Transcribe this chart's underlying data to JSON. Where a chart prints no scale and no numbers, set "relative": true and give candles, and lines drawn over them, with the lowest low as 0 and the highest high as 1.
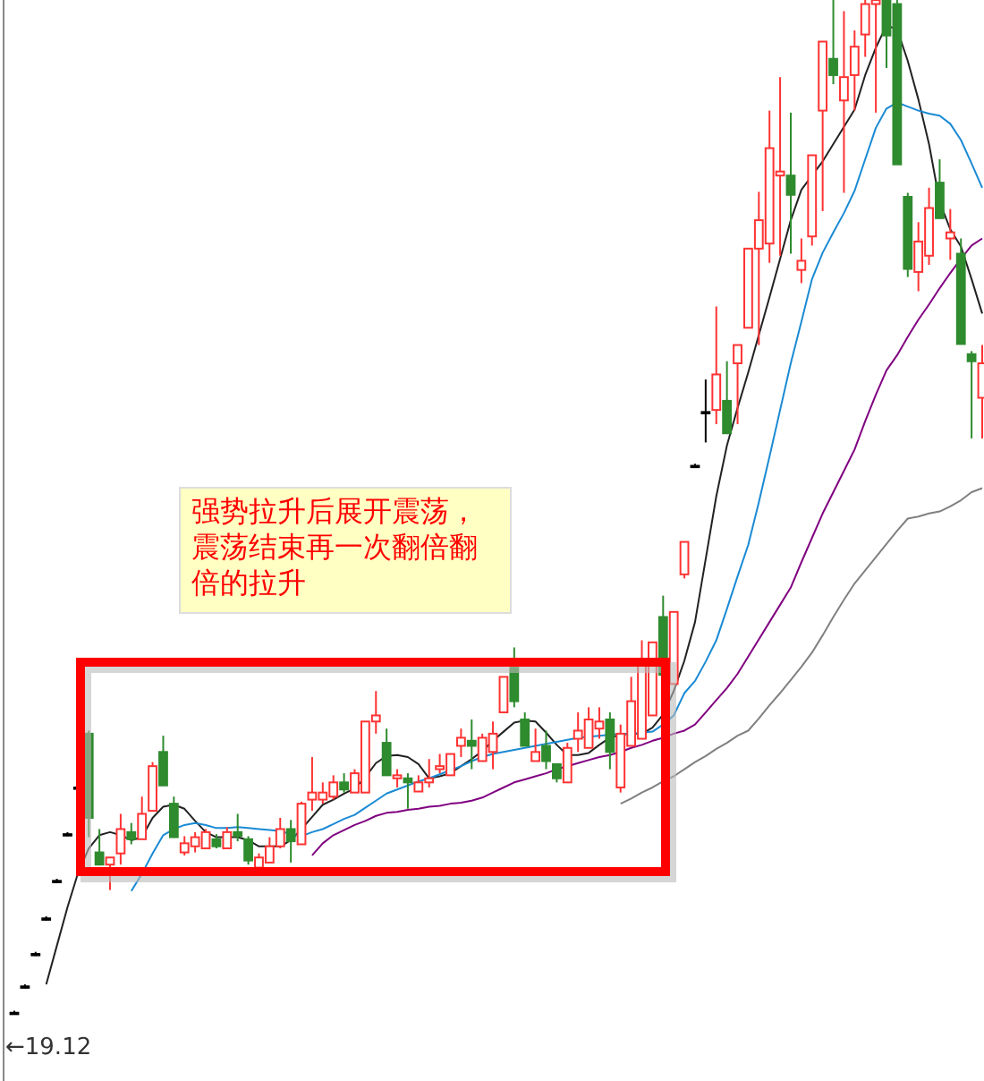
{
  "chart_data": {
    "type": "candlestick",
    "relative": true,
    "categories": [
      null,
      null,
      null,
      null,
      null,
      null,
      null,
      null,
      null,
      null,
      null,
      null,
      null,
      null,
      null,
      null,
      null,
      null,
      null,
      null,
      null,
      null,
      null,
      null,
      null,
      null,
      null,
      null,
      null,
      null,
      null,
      null,
      null,
      null,
      null,
      null,
      null,
      null,
      null,
      null,
      null,
      null,
      null,
      null,
      null,
      null,
      null,
      null,
      null,
      null,
      null,
      null,
      null,
      null,
      null,
      null,
      null,
      null,
      null,
      null,
      null,
      null,
      null,
      null,
      null,
      null,
      null,
      null,
      null,
      null,
      null,
      null,
      null,
      null,
      null,
      null,
      null,
      null,
      null,
      null,
      null,
      null,
      null,
      null,
      null,
      null,
      null,
      null,
      null,
      null,
      null,
      null
    ],
    "ohlc": [
      [
        0.002,
        0.004,
        0,
        0.002
      ],
      [
        0.028,
        0.03,
        0.026,
        0.028
      ],
      [
        0.06,
        0.062,
        0.058,
        0.06
      ],
      [
        0.095,
        0.097,
        0.093,
        0.095
      ],
      [
        0.132,
        0.134,
        0.13,
        0.132
      ],
      [
        0.178,
        0.18,
        0.176,
        0.178
      ],
      [
        0.224,
        0.226,
        0.222,
        0.224
      ],
      [
        0.277,
        0.28,
        0.175,
        0.194
      ],
      [
        0.16,
        0.183,
        0.148,
        0.148
      ],
      [
        0.148,
        0.155,
        0.123,
        0.155
      ],
      [
        0.159,
        0.198,
        0.148,
        0.183
      ],
      [
        0.18,
        0.189,
        0.168,
        0.173
      ],
      [
        0.173,
        0.215,
        0.173,
        0.198
      ],
      [
        0.201,
        0.249,
        0.201,
        0.245
      ],
      [
        0.259,
        0.275,
        0.226,
        0.226
      ],
      [
        0.208,
        0.215,
        0.175,
        0.175
      ],
      [
        0.16,
        0.176,
        0.157,
        0.169
      ],
      [
        0.166,
        0.18,
        0.16,
        0.175
      ],
      [
        0.164,
        0.183,
        0.164,
        0.18
      ],
      [
        0.173,
        0.178,
        0.164,
        0.166
      ],
      [
        0.164,
        0.185,
        0.164,
        0.18
      ],
      [
        0.18,
        0.198,
        0.171,
        0.176
      ],
      [
        0.173,
        0.176,
        0.148,
        0.152
      ],
      [
        0.145,
        0.159,
        0.138,
        0.155
      ],
      [
        0.15,
        0.175,
        0.15,
        0.166
      ],
      [
        0.166,
        0.194,
        0.164,
        0.183
      ],
      [
        0.183,
        0.192,
        0.15,
        0.171
      ],
      [
        0.168,
        0.21,
        0.168,
        0.208
      ],
      [
        0.212,
        0.254,
        0.201,
        0.219
      ],
      [
        0.212,
        0.229,
        0.208,
        0.219
      ],
      [
        0.215,
        0.236,
        0.212,
        0.229
      ],
      [
        0.229,
        0.238,
        0.219,
        0.222
      ],
      [
        0.219,
        0.242,
        0.219,
        0.238
      ],
      [
        0.219,
        0.289,
        0.219,
        0.289
      ],
      [
        0.289,
        0.319,
        0.277,
        0.295
      ],
      [
        0.268,
        0.282,
        0.236,
        0.236
      ],
      [
        0.233,
        0.242,
        0.224,
        0.236
      ],
      [
        0.233,
        0.238,
        0.203,
        0.229
      ],
      [
        0.22,
        0.236,
        0.22,
        0.229
      ],
      [
        0.229,
        0.252,
        0.224,
        0.233
      ],
      [
        0.242,
        0.257,
        0.238,
        0.245
      ],
      [
        0.236,
        0.257,
        0.236,
        0.257
      ],
      [
        0.265,
        0.282,
        0.254,
        0.273
      ],
      [
        0.27,
        0.291,
        0.242,
        0.265
      ],
      [
        0.25,
        0.277,
        0.25,
        0.273
      ],
      [
        0.259,
        0.289,
        0.242,
        0.277
      ],
      [
        0.298,
        0.333,
        0.298,
        0.333
      ],
      [
        0.342,
        0.362,
        0.303,
        0.309
      ],
      [
        0.291,
        0.298,
        0.265,
        0.265
      ],
      [
        0.25,
        0.282,
        0.25,
        0.259
      ],
      [
        0.265,
        0.28,
        0.242,
        0.25
      ],
      [
        0.247,
        0.247,
        0.229,
        0.233
      ],
      [
        0.229,
        0.268,
        0.229,
        0.263
      ],
      [
        0.272,
        0.298,
        0.259,
        0.28
      ],
      [
        0.263,
        0.303,
        0.263,
        0.291
      ],
      [
        0.282,
        0.303,
        0.272,
        0.289
      ],
      [
        0.291,
        0.298,
        0.242,
        0.259
      ],
      [
        0.224,
        0.286,
        0.219,
        0.277
      ],
      [
        0.265,
        0.333,
        0.265,
        0.309
      ],
      [
        0.272,
        0.369,
        0.272,
        0.344
      ],
      [
        0.295,
        0.367,
        0.295,
        0.367
      ],
      [
        0.392,
        0.413,
        0.335,
        0.335
      ],
      [
        0.326,
        0.397,
        0.326,
        0.397
      ],
      [
        0.434,
        0.466,
        0.43,
        0.466
      ],
      [
        0.541,
        0.543,
        0.539,
        0.541
      ],
      [
        0.594,
        0.626,
        0.564,
        0.594
      ],
      [
        0.596,
        0.698,
        0.582,
        0.631
      ],
      [
        0.605,
        0.644,
        0.573,
        0.573
      ],
      [
        0.642,
        0.66,
        0.582,
        0.66
      ],
      [
        0.677,
        0.755,
        0.677,
        0.755
      ],
      [
        0.755,
        0.811,
        0.66,
        0.783
      ],
      [
        0.76,
        0.891,
        0.741,
        0.854
      ],
      [
        0.827,
        0.924,
        0.748,
        0.831
      ],
      [
        0.827,
        0.889,
        0.75,
        0.808
      ],
      [
        0.734,
        0.765,
        0.721,
        0.743
      ],
      [
        0.767,
        0.847,
        0.758,
        0.847
      ],
      [
        0.891,
        0.959,
        0.792,
        0.959
      ],
      [
        0.942,
        1,
        0.917,
        0.926
      ],
      [
        0.901,
        0.989,
        0.81,
        0.924
      ],
      [
        0.926,
        0.97,
        0.891,
        0.954
      ],
      [
        0.966,
        1,
        0.944,
        0.996
      ],
      [
        0.996,
        1,
        0.889,
        1
      ],
      [
        1,
        1,
        0.933,
        0.965
      ],
      [
        0.996,
        1,
        0.838,
        0.838
      ],
      [
        0.806,
        0.81,
        0.727,
        0.735
      ],
      [
        0.732,
        0.781,
        0.713,
        0.762
      ],
      [
        0.748,
        0.815,
        0.739,
        0.795
      ],
      [
        0.82,
        0.843,
        0.785,
        0.785
      ],
      [
        0.765,
        0.794,
        0.744,
        0.771
      ],
      [
        0.75,
        0.765,
        0.661,
        0.661
      ],
      [
        0.651,
        0.654,
        0.568,
        0.644
      ],
      [
        0.608,
        0.66,
        0.568,
        0.642
      ]
    ],
    "colors": [
      "#000000",
      "#000000",
      "#000000",
      "#000000",
      "#000000",
      "#000000",
      "#000000",
      "#2e8b2e",
      "#2e8b2e",
      "#ff3333",
      "#ff3333",
      "#2e8b2e",
      "#ff3333",
      "#ff3333",
      "#2e8b2e",
      "#2e8b2e",
      "#ff3333",
      "#ff3333",
      "#ff3333",
      "#2e8b2e",
      "#ff3333",
      "#2e8b2e",
      "#2e8b2e",
      "#ff3333",
      "#ff3333",
      "#ff3333",
      "#2e8b2e",
      "#ff3333",
      "#ff3333",
      "#ff3333",
      "#ff3333",
      "#2e8b2e",
      "#ff3333",
      "#ff3333",
      "#ff3333",
      "#2e8b2e",
      "#ff3333",
      "#2e8b2e",
      "#ff3333",
      "#ff3333",
      "#ff3333",
      "#ff3333",
      "#ff3333",
      "#2e8b2e",
      "#ff3333",
      "#ff3333",
      "#ff3333",
      "#2e8b2e",
      "#2e8b2e",
      "#ff3333",
      "#2e8b2e",
      "#2e8b2e",
      "#ff3333",
      "#ff3333",
      "#ff3333",
      "#ff3333",
      "#2e8b2e",
      "#ff3333",
      "#ff3333",
      "#ff3333",
      "#ff3333",
      "#2e8b2e",
      "#ff3333",
      "#ff3333",
      "#000000",
      "#000000",
      "#ff3333",
      "#2e8b2e",
      "#ff3333",
      "#ff3333",
      "#ff3333",
      "#ff3333",
      "#ff3333",
      "#2e8b2e",
      "#ff3333",
      "#ff3333",
      "#ff3333",
      "#2e8b2e",
      "#ff3333",
      "#ff3333",
      "#ff3333",
      "#ff3333",
      "#2e8b2e",
      "#2e8b2e",
      "#2e8b2e",
      "#ff3333",
      "#ff3333",
      "#2e8b2e",
      "#ff3333",
      "#2e8b2e",
      "#2e8b2e",
      "#ff3333"
    ],
    "series": [
      {
        "type": "line",
        "color": "#222222",
        "values": [
          null,
          null,
          null,
          0.03,
          0.068,
          0.106,
          0.14,
          0.164,
          0.177,
          0.18,
          0.177,
          0.172,
          0.175,
          0.194,
          0.205,
          0.207,
          0.203,
          0.191,
          0.18,
          0.175,
          0.175,
          0.175,
          0.172,
          0.166,
          0.166,
          0.166,
          0.172,
          0.183,
          0.195,
          0.207,
          0.212,
          0.218,
          0.223,
          0.234,
          0.248,
          0.255,
          0.256,
          0.254,
          0.247,
          0.233,
          0.235,
          0.238,
          0.245,
          0.252,
          0.26,
          0.27,
          0.279,
          0.288,
          0.29,
          0.289,
          0.278,
          0.266,
          0.256,
          0.256,
          0.258,
          0.266,
          0.273,
          0.276,
          0.277,
          0.277,
          0.283,
          0.296,
          0.319,
          0.349,
          0.387,
          0.449,
          0.511,
          0.561,
          0.598,
          0.633,
          0.67,
          0.707,
          0.745,
          0.783,
          0.813,
          0.827,
          0.841,
          0.858,
          0.875,
          0.892,
          0.926,
          0.953,
          0.975,
          0.971,
          0.94,
          0.902,
          0.858,
          0.801,
          0.774,
          0.757,
          0.725,
          0.691
        ]
      },
      {
        "type": "line",
        "color": "#1a8ad4",
        "values": [
          null,
          null,
          null,
          null,
          null,
          null,
          null,
          null,
          null,
          null,
          null,
          0.122,
          0.139,
          0.159,
          0.177,
          0.183,
          0.187,
          0.189,
          0.187,
          0.184,
          0.184,
          0.185,
          0.184,
          0.183,
          0.182,
          0.181,
          0.178,
          0.176,
          0.18,
          0.183,
          0.188,
          0.193,
          0.197,
          0.204,
          0.211,
          0.218,
          0.222,
          0.226,
          0.23,
          0.233,
          0.237,
          0.241,
          0.245,
          0.25,
          0.254,
          0.257,
          0.259,
          0.261,
          0.263,
          0.265,
          0.267,
          0.269,
          0.271,
          0.273,
          0.274,
          0.275,
          0.276,
          0.277,
          0.277,
          0.278,
          0.279,
          0.286,
          0.295,
          0.317,
          0.329,
          0.348,
          0.369,
          0.4,
          0.432,
          0.463,
          0.505,
          0.55,
          0.596,
          0.642,
          0.683,
          0.725,
          0.751,
          0.771,
          0.79,
          0.812,
          0.843,
          0.874,
          0.893,
          0.899,
          0.895,
          0.891,
          0.888,
          0.886,
          0.878,
          0.862,
          0.839,
          0.815
        ]
      },
      {
        "type": "line",
        "color": "#800080",
        "values": [
          null,
          null,
          null,
          null,
          null,
          null,
          null,
          null,
          null,
          null,
          null,
          null,
          null,
          null,
          null,
          null,
          null,
          null,
          null,
          null,
          null,
          null,
          null,
          null,
          null,
          null,
          null,
          null,
          0.157,
          0.169,
          0.177,
          0.182,
          0.187,
          0.191,
          0.196,
          0.199,
          0.2,
          0.202,
          0.203,
          0.205,
          0.206,
          0.208,
          0.209,
          0.211,
          0.214,
          0.219,
          0.224,
          0.229,
          0.232,
          0.235,
          0.238,
          0.242,
          0.245,
          0.248,
          0.251,
          0.254,
          0.256,
          0.259,
          0.263,
          0.266,
          0.27,
          0.273,
          0.277,
          0.28,
          0.286,
          0.298,
          0.31,
          0.322,
          0.336,
          0.353,
          0.37,
          0.387,
          0.404,
          0.421,
          0.446,
          0.47,
          0.494,
          0.515,
          0.536,
          0.557,
          0.585,
          0.611,
          0.635,
          0.65,
          0.668,
          0.685,
          0.7,
          0.716,
          0.731,
          0.745,
          0.758,
          0.765
        ]
      },
      {
        "type": "line",
        "color": "#808080",
        "values": [
          null,
          null,
          null,
          null,
          null,
          null,
          null,
          null,
          null,
          null,
          null,
          null,
          null,
          null,
          null,
          null,
          null,
          null,
          null,
          null,
          null,
          null,
          null,
          null,
          null,
          null,
          null,
          null,
          null,
          null,
          null,
          null,
          null,
          null,
          null,
          null,
          null,
          null,
          null,
          null,
          null,
          null,
          null,
          null,
          null,
          null,
          null,
          null,
          null,
          null,
          null,
          null,
          null,
          null,
          null,
          null,
          null,
          0.208,
          0.213,
          0.219,
          0.224,
          0.23,
          0.235,
          0.242,
          0.249,
          0.255,
          0.262,
          0.268,
          0.275,
          0.28,
          0.292,
          0.305,
          0.317,
          0.33,
          0.343,
          0.357,
          0.374,
          0.392,
          0.409,
          0.425,
          0.438,
          0.451,
          0.464,
          0.477,
          0.489,
          0.491,
          0.494,
          0.496,
          0.501,
          0.507,
          0.515,
          0.519
        ]
      }
    ],
    "annotations": [
      "强势拉升后展开震荡，震荡结束再一次翻倍翻倍的拉升",
      "←19.12"
    ]
  }
}
